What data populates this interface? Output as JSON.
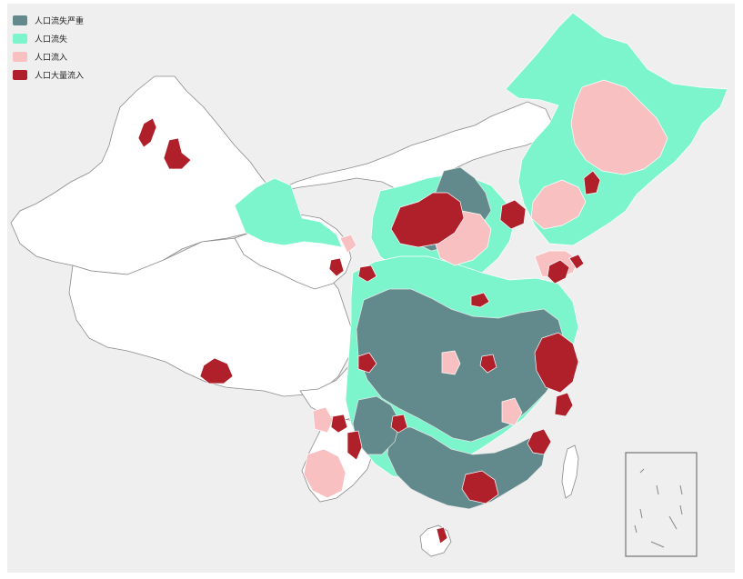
{
  "legend": {
    "items": [
      {
        "label": "人口流失严重",
        "color": "#628a8c"
      },
      {
        "label": "人口流失",
        "color": "#7df5cc"
      },
      {
        "label": "人口流入",
        "color": "#f9c0c2"
      },
      {
        "label": "人口大量流入",
        "color": "#b0202a"
      }
    ]
  },
  "map": {
    "border_color": "#8a8a8a",
    "no_data_color": "#ffffff",
    "background": "#efefef"
  }
}
